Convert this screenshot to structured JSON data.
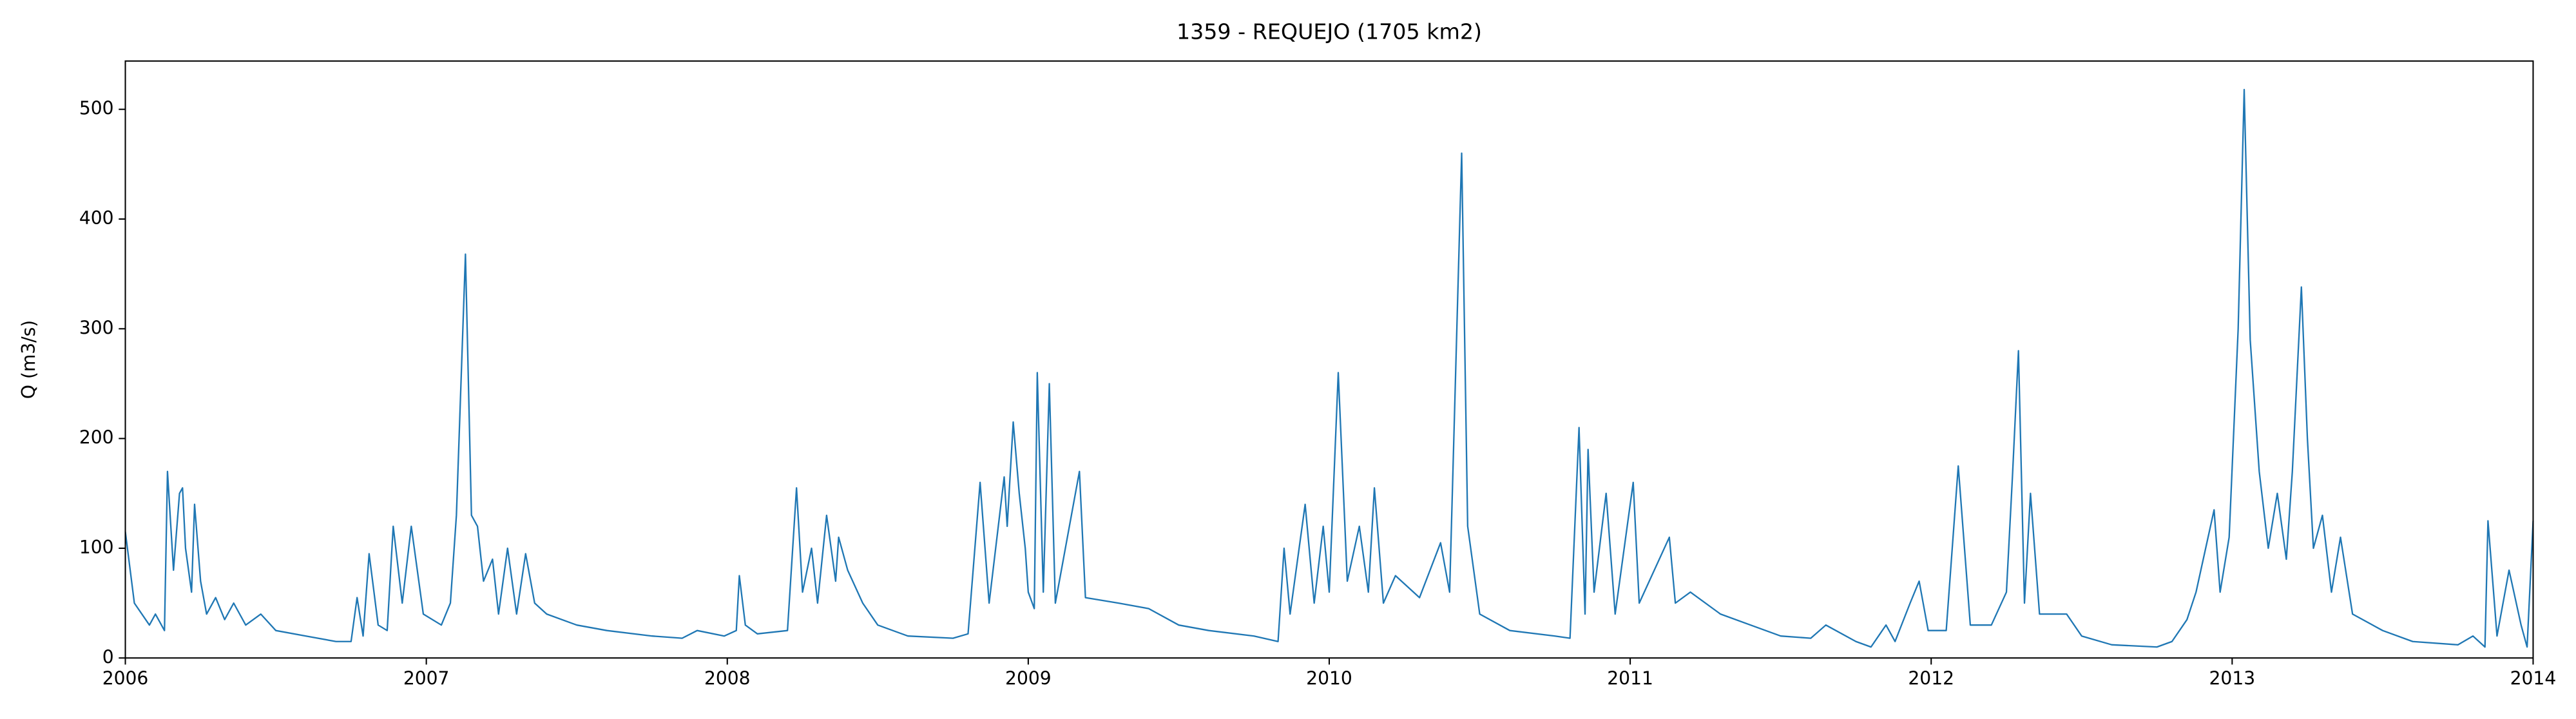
{
  "chart_data": {
    "type": "line",
    "title": "1359 - REQUEJO (1705 km2)",
    "ylabel": "Q (m3/s)",
    "x": [
      2006.0,
      2006.03,
      2006.08,
      2006.1,
      2006.13,
      2006.14,
      2006.16,
      2006.18,
      2006.19,
      2006.2,
      2006.22,
      2006.23,
      2006.25,
      2006.27,
      2006.3,
      2006.33,
      2006.36,
      2006.4,
      2006.45,
      2006.5,
      2006.6,
      2006.7,
      2006.75,
      2006.77,
      2006.79,
      2006.81,
      2006.84,
      2006.87,
      2006.89,
      2006.92,
      2006.95,
      2006.97,
      2006.99,
      2007.05,
      2007.08,
      2007.1,
      2007.13,
      2007.15,
      2007.17,
      2007.19,
      2007.22,
      2007.24,
      2007.27,
      2007.3,
      2007.33,
      2007.36,
      2007.4,
      2007.5,
      2007.6,
      2007.75,
      2007.85,
      2007.9,
      2007.99,
      2008.03,
      2008.04,
      2008.06,
      2008.1,
      2008.2,
      2008.23,
      2008.25,
      2008.28,
      2008.3,
      2008.33,
      2008.36,
      2008.37,
      2008.4,
      2008.45,
      2008.5,
      2008.6,
      2008.75,
      2008.8,
      2008.84,
      2008.87,
      2008.92,
      2008.93,
      2008.95,
      2008.97,
      2008.99,
      2009.0,
      2009.02,
      2009.03,
      2009.05,
      2009.07,
      2009.09,
      2009.17,
      2009.19,
      2009.3,
      2009.4,
      2009.5,
      2009.6,
      2009.75,
      2009.83,
      2009.85,
      2009.87,
      2009.92,
      2009.95,
      2009.98,
      2010.0,
      2010.03,
      2010.06,
      2010.1,
      2010.13,
      2010.15,
      2010.18,
      2010.22,
      2010.3,
      2010.37,
      2010.4,
      2010.44,
      2010.46,
      2010.5,
      2010.6,
      2010.75,
      2010.8,
      2010.83,
      2010.85,
      2010.86,
      2010.88,
      2010.92,
      2010.95,
      2011.01,
      2011.03,
      2011.13,
      2011.15,
      2011.2,
      2011.3,
      2011.4,
      2011.5,
      2011.6,
      2011.65,
      2011.75,
      2011.8,
      2011.85,
      2011.88,
      2011.93,
      2011.96,
      2011.99,
      2012.05,
      2012.09,
      2012.13,
      2012.2,
      2012.25,
      2012.27,
      2012.29,
      2012.31,
      2012.33,
      2012.36,
      2012.45,
      2012.5,
      2012.6,
      2012.75,
      2012.8,
      2012.85,
      2012.88,
      2012.94,
      2012.96,
      2012.99,
      2013.02,
      2013.04,
      2013.06,
      2013.09,
      2013.12,
      2013.15,
      2013.18,
      2013.2,
      2013.23,
      2013.25,
      2013.27,
      2013.3,
      2013.33,
      2013.36,
      2013.4,
      2013.5,
      2013.6,
      2013.75,
      2013.8,
      2013.84,
      2013.85,
      2013.88,
      2013.92,
      2013.96,
      2013.98,
      2014.0
    ],
    "values": [
      115,
      50,
      30,
      40,
      25,
      170,
      80,
      150,
      155,
      100,
      60,
      140,
      70,
      40,
      55,
      35,
      50,
      30,
      40,
      25,
      20,
      15,
      15,
      55,
      20,
      95,
      30,
      25,
      120,
      50,
      120,
      80,
      40,
      30,
      50,
      130,
      368,
      130,
      120,
      70,
      90,
      40,
      100,
      40,
      95,
      50,
      40,
      30,
      25,
      20,
      18,
      25,
      20,
      25,
      75,
      30,
      22,
      25,
      155,
      60,
      100,
      50,
      130,
      70,
      110,
      80,
      50,
      30,
      20,
      18,
      22,
      160,
      50,
      165,
      120,
      215,
      150,
      100,
      60,
      45,
      260,
      60,
      250,
      50,
      170,
      55,
      50,
      45,
      30,
      25,
      20,
      15,
      100,
      40,
      140,
      50,
      120,
      60,
      260,
      70,
      120,
      60,
      155,
      50,
      75,
      55,
      105,
      60,
      460,
      120,
      40,
      25,
      20,
      18,
      210,
      40,
      190,
      60,
      150,
      40,
      160,
      50,
      110,
      50,
      60,
      40,
      30,
      20,
      18,
      30,
      15,
      10,
      30,
      15,
      50,
      70,
      25,
      25,
      175,
      30,
      30,
      60,
      165,
      280,
      50,
      150,
      40,
      40,
      20,
      12,
      10,
      15,
      35,
      60,
      135,
      60,
      110,
      300,
      518,
      290,
      170,
      100,
      150,
      90,
      170,
      338,
      200,
      100,
      130,
      60,
      110,
      40,
      25,
      15,
      12,
      20,
      10,
      125,
      20,
      80,
      30,
      10,
      125
    ],
    "color": "#1f77b4",
    "xlim": [
      2006,
      2014
    ],
    "xticks": [
      2006,
      2007,
      2008,
      2009,
      2010,
      2011,
      2012,
      2013,
      2014
    ],
    "ylim": [
      0,
      544
    ],
    "yticks": [
      0,
      100,
      200,
      300,
      400,
      500
    ],
    "grid": false
  }
}
